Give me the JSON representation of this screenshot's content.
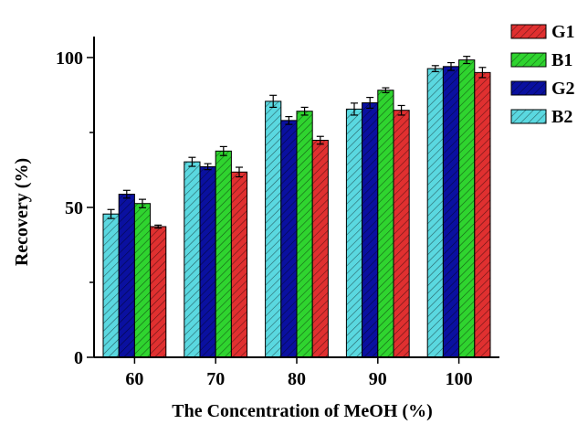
{
  "chart_data": {
    "type": "bar",
    "xlabel": "The Concentration of MeOH (%)",
    "ylabel": "Recovery  (%)",
    "categories": [
      "60",
      "70",
      "80",
      "90",
      "100"
    ],
    "ylim": [
      0,
      107
    ],
    "yticks": [
      0,
      50,
      100
    ],
    "grid": false,
    "legend_position": "top-right",
    "legend_order": [
      "G1",
      "B1",
      "G2",
      "B2"
    ],
    "series": [
      {
        "name": "B2",
        "color": "#5ad8e0",
        "values": [
          47.8,
          65.2,
          85.4,
          82.8,
          96.3
        ],
        "errors": [
          1.5,
          1.5,
          2.0,
          2.0,
          1.0
        ]
      },
      {
        "name": "G2",
        "color": "#0a10a0",
        "values": [
          54.4,
          63.6,
          79.0,
          84.9,
          97.0
        ],
        "errors": [
          1.3,
          1.0,
          1.3,
          1.8,
          1.3
        ]
      },
      {
        "name": "B1",
        "color": "#2fd42f",
        "values": [
          51.3,
          68.8,
          82.1,
          89.1,
          99.2
        ],
        "errors": [
          1.4,
          1.5,
          1.3,
          0.8,
          1.2
        ]
      },
      {
        "name": "G1",
        "color": "#e03030",
        "values": [
          43.6,
          61.8,
          72.4,
          82.4,
          95.0
        ],
        "errors": [
          0.5,
          1.6,
          1.3,
          1.6,
          1.7
        ]
      }
    ]
  }
}
